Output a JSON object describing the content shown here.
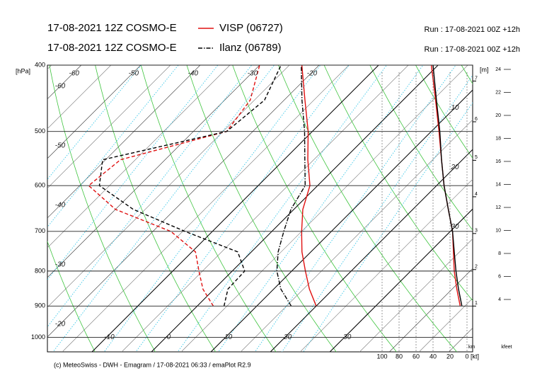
{
  "chart_data": {
    "type": "emagram",
    "ylabel": "[hPa]",
    "ylim": [
      1050,
      400
    ],
    "log_y": true,
    "yticks": [
      400,
      500,
      600,
      700,
      800,
      900,
      1000
    ],
    "xlim": [
      -17.5,
      54
    ],
    "skew": 1,
    "xticks": [
      -10,
      0,
      10,
      20,
      30
    ],
    "isotherm_labels_top": [
      -60,
      -50,
      -40,
      -30,
      -20
    ],
    "isotherm_labels_left": [
      -60,
      -50,
      -40,
      -30,
      -20
    ],
    "isotherm_labels_right": [
      10,
      20,
      30
    ],
    "km_label": "[m]",
    "km_ticks": [
      {
        "value": 900,
        "label": "1"
      },
      {
        "value": 796,
        "label": "2"
      },
      {
        "value": 705,
        "label": "3"
      },
      {
        "value": 623,
        "label": "4"
      },
      {
        "value": 551,
        "label": "5"
      },
      {
        "value": 484,
        "label": "6"
      },
      {
        "value": 422,
        "label": "7"
      }
    ],
    "km_unit": "km",
    "kfeet_label": "kfeet",
    "kfeet_lim": [
      4,
      24
    ],
    "kfeet_ticks": [
      4,
      6,
      8,
      10,
      12,
      14,
      16,
      18,
      20,
      22,
      24
    ],
    "wind_label": "[kt]",
    "wind_xlim": [
      100,
      0
    ],
    "wind_ticks": [
      100,
      80,
      60,
      40,
      20,
      0
    ],
    "footer": "(c) MeteoSwiss - DWH - Emagram / 17-08-2021 06:33 / emaPlot R2.9",
    "series": [
      {
        "name": "VISP (06727)",
        "model": "17-08-2021 12Z COSMO-E",
        "run": "Run : 17-08-2021 00Z +12h",
        "color": "#e01010",
        "temperature_style": "solid",
        "pressure": [
          900,
          850,
          800,
          750,
          700,
          650,
          600,
          550,
          500,
          450,
          400
        ],
        "temperature": [
          20,
          16,
          12.3,
          8.5,
          5,
          1.5,
          -1.3,
          -6,
          -10.7,
          -16.5,
          -22.9
        ],
        "dewpoint": [
          2.7,
          -1.9,
          -5.6,
          -9.4,
          -17,
          -30,
          -38.5,
          -37.5,
          -24.4,
          -25.7,
          -30
        ],
        "wind_speed": [
          8,
          12,
          15,
          16,
          17,
          22,
          27,
          30,
          33,
          37,
          42
        ]
      },
      {
        "name": "Ilanz (06789)",
        "model": "17-08-2021 12Z COSMO-E",
        "run": "Run : 17-08-2021 00Z +12h",
        "color": "#000000",
        "temperature_style": "dashdot",
        "pressure": [
          900,
          850,
          800,
          750,
          700,
          650,
          600,
          550,
          500,
          450,
          400
        ],
        "temperature": [
          15.8,
          11.2,
          7.5,
          4.5,
          2,
          -0.5,
          -2.1,
          -6.5,
          -11.3,
          -17,
          -23
        ],
        "dewpoint": [
          4.5,
          2.3,
          2.1,
          -2.3,
          -14.6,
          -27,
          -36.7,
          -40.5,
          -24.4,
          -23.3,
          -26.4
        ],
        "wind_speed": [
          6,
          10,
          13,
          15,
          17,
          22,
          27,
          30,
          32,
          36,
          40
        ]
      }
    ]
  }
}
